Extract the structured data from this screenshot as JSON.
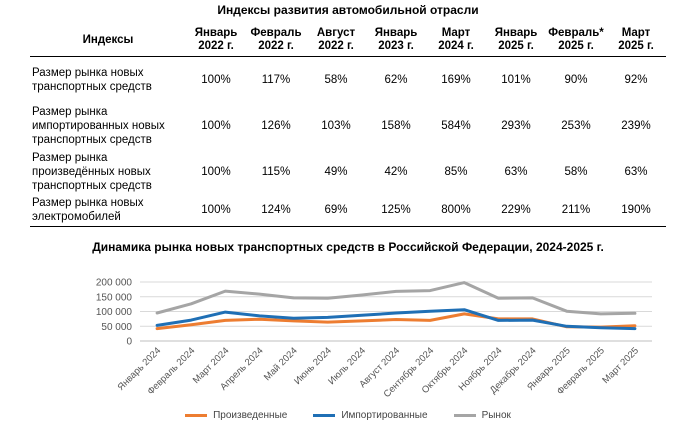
{
  "table": {
    "title": "Индексы развития автомобильной отрасли",
    "header_label": "Индексы",
    "columns": [
      [
        "Январь",
        "2022 г."
      ],
      [
        "Февраль",
        "2022 г."
      ],
      [
        "Август",
        "2022 г."
      ],
      [
        "Январь",
        "2023 г."
      ],
      [
        "Март",
        "2024 г."
      ],
      [
        "Январь",
        "2025 г."
      ],
      [
        "Февраль*",
        "2025 г."
      ],
      [
        "Март",
        "2025 г."
      ]
    ],
    "rows": [
      {
        "label": "Размер рынка новых транспортных средств",
        "values": [
          "100%",
          "117%",
          "58%",
          "62%",
          "169%",
          "101%",
          "90%",
          "92%"
        ]
      },
      {
        "label": "Размер рынка импортированных новых транспортных средств",
        "values": [
          "100%",
          "126%",
          "103%",
          "158%",
          "584%",
          "293%",
          "253%",
          "239%"
        ]
      },
      {
        "label": "Размер рынка произведённых новых транспортных средств",
        "values": [
          "100%",
          "115%",
          "49%",
          "42%",
          "85%",
          "63%",
          "58%",
          "63%"
        ]
      },
      {
        "label": "Размер рынка новых электромобилей",
        "values": [
          "100%",
          "124%",
          "69%",
          "125%",
          "800%",
          "229%",
          "211%",
          "190%"
        ]
      }
    ]
  },
  "chart_data": {
    "type": "line",
    "title": "Динамика рынка новых транспортных средств в Российской Федерации, 2024-2025 г.",
    "categories": [
      "Январь 2024",
      "Февраль 2024",
      "Март 2024",
      "Апрель 2024",
      "Май 2024",
      "Июнь 2024",
      "Июль 2024",
      "Август 2024",
      "Сентябрь 2024",
      "Октябрь 2024",
      "Ноябрь 2024",
      "Декабрь 2024",
      "Январь 2025",
      "Февраль 2025",
      "Март 2025"
    ],
    "y_ticks": [
      "0",
      "50 000",
      "100 000",
      "150 000",
      "200 000"
    ],
    "ylim": [
      0,
      200000
    ],
    "series": [
      {
        "name": "Произведенные",
        "color": "#ED7D31",
        "values": [
          42000,
          55000,
          70000,
          74000,
          68000,
          64000,
          68000,
          73000,
          70000,
          92000,
          75000,
          75000,
          48000,
          47000,
          52000
        ]
      },
      {
        "name": "Импортированные",
        "color": "#1F6FB5",
        "values": [
          53000,
          71000,
          98000,
          85000,
          77000,
          80000,
          87000,
          95000,
          101000,
          106000,
          70000,
          71000,
          50000,
          45000,
          42000
        ]
      },
      {
        "name": "Рынок",
        "color": "#A5A5A5",
        "values": [
          95000,
          126000,
          169000,
          159000,
          146000,
          145000,
          156000,
          168000,
          171000,
          198000,
          145000,
          146000,
          101000,
          92000,
          94000
        ]
      }
    ]
  }
}
